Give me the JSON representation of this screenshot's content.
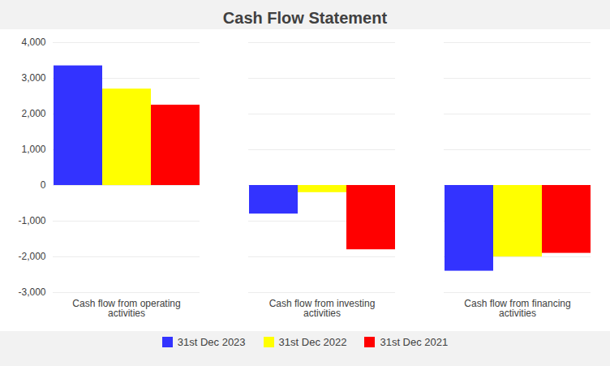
{
  "chart_data": {
    "type": "bar",
    "title": "Cash Flow Statement",
    "categories": [
      "Cash flow from operating\nactivities",
      "Cash flow from investing\nactivities",
      "Cash flow from financing\nactivities"
    ],
    "series": [
      {
        "name": "31st Dec 2023",
        "color": "#3333FF",
        "values": [
          3350,
          -800,
          -2400
        ]
      },
      {
        "name": "31st Dec 2022",
        "color": "#FFFF00",
        "values": [
          2700,
          -200,
          -2000
        ]
      },
      {
        "name": "31st Dec 2021",
        "color": "#FF0000",
        "values": [
          2250,
          -1800,
          -1900
        ]
      }
    ],
    "ylim": [
      -3000,
      4000
    ],
    "yticks": [
      {
        "value": -3000,
        "label": "-3,000"
      },
      {
        "value": -2000,
        "label": "-2,000"
      },
      {
        "value": -1000,
        "label": "-1,000"
      },
      0,
      {
        "value": 1000,
        "label": "1,000"
      },
      {
        "value": 2000,
        "label": "2,000"
      },
      {
        "value": 3000,
        "label": "3,000"
      },
      {
        "value": 4000,
        "label": "4,000"
      }
    ],
    "grid": true,
    "legend": "bottom"
  }
}
